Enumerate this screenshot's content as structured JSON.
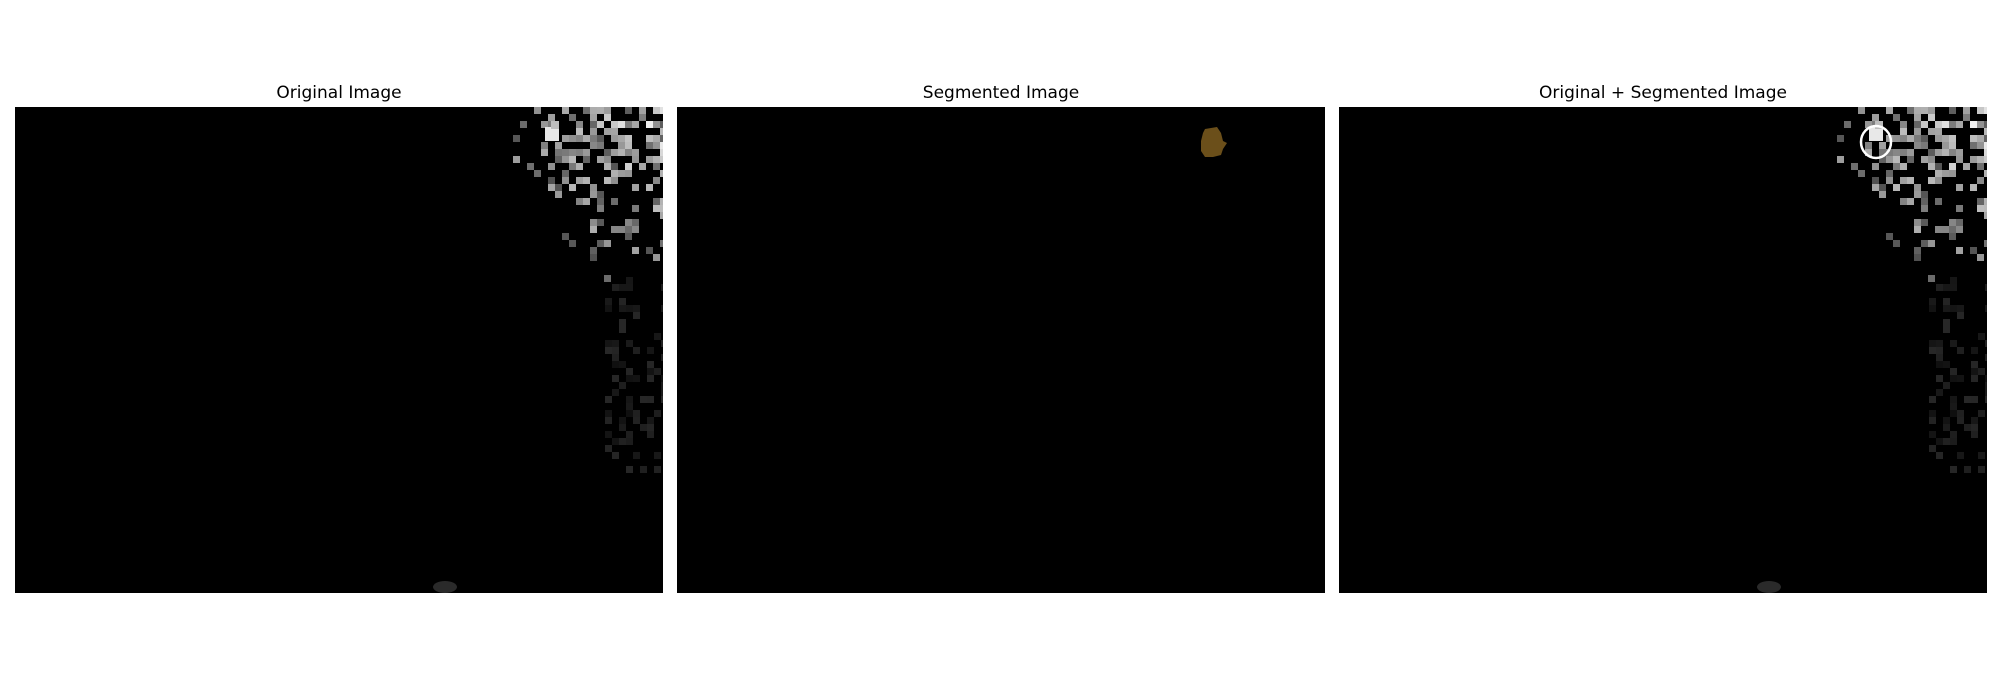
{
  "figure": {
    "background_color": "#ffffff",
    "panels": [
      {
        "title": "Original Image",
        "content": "grayscale microscopy frame, mostly black, bright speckled cluster in upper-right corner, faint smudge near bottom edge"
      },
      {
        "title": "Segmented Image",
        "content": "black background with a single small brown segmented blob in the upper-right area",
        "segment_color": "#6b4f1a"
      },
      {
        "title": "Original + Segmented Image",
        "content": "original frame with the segmented region outlined as a white circle in the upper-right cluster",
        "outline_color": "#ffffff"
      }
    ]
  }
}
